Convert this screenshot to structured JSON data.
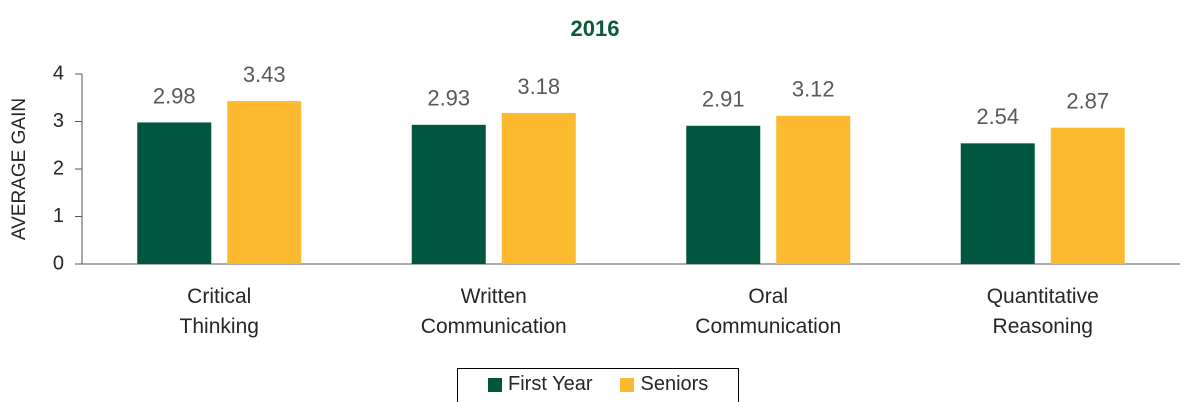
{
  "chart_data": {
    "type": "bar",
    "title": "2016",
    "y_label": "AVERAGE GAIN",
    "categories": [
      "Critical\nThinking",
      "Written\nCommunication",
      "Oral\nCommunication",
      "Quantitative\nReasoning"
    ],
    "series": [
      {
        "name": "First Year",
        "color": "#00563f",
        "values": [
          2.98,
          2.93,
          2.91,
          2.54
        ]
      },
      {
        "name": "Seniors",
        "color": "#fbba30",
        "values": [
          3.43,
          3.18,
          3.12,
          2.87
        ]
      }
    ],
    "ylim": [
      0,
      4
    ],
    "yticks": [
      0,
      1,
      2,
      3,
      4
    ],
    "grid": false,
    "legend": "bottom"
  }
}
